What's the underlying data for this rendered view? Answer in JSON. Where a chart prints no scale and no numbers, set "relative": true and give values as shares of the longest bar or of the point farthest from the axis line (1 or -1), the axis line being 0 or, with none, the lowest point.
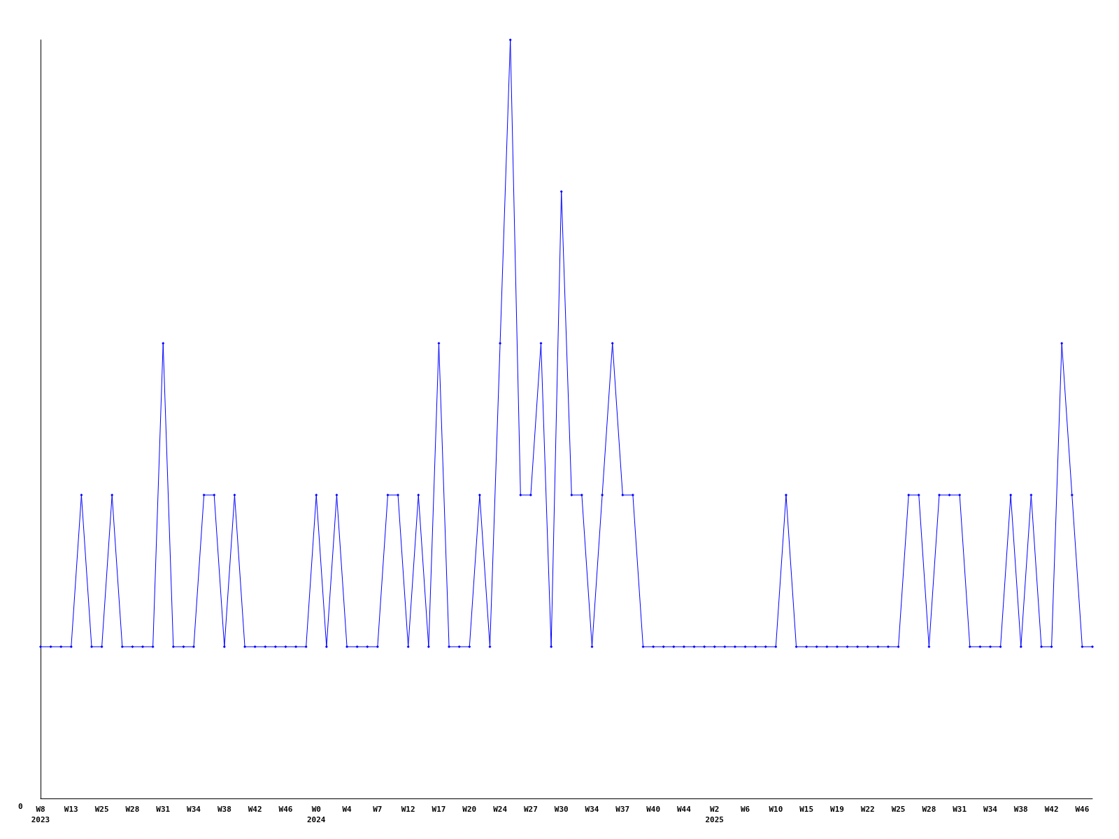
{
  "chart_data": {
    "type": "line",
    "relative": true,
    "color": "#0000ff",
    "marker": "diamond",
    "annotations": [
      "0"
    ],
    "categories": [
      "W8\n2023",
      null,
      null,
      "W13",
      null,
      null,
      "W25",
      null,
      null,
      "W28",
      null,
      null,
      "W31",
      null,
      null,
      "W34",
      null,
      null,
      "W38",
      null,
      null,
      "W42",
      null,
      null,
      "W46",
      null,
      null,
      "W0\n2024",
      null,
      null,
      "W4",
      null,
      null,
      "W7",
      null,
      null,
      "W12",
      null,
      null,
      "W17",
      null,
      null,
      "W20",
      null,
      null,
      "W24",
      null,
      null,
      "W27",
      null,
      null,
      "W30",
      null,
      null,
      "W34",
      null,
      null,
      "W37",
      null,
      null,
      "W40",
      null,
      null,
      "W44",
      null,
      null,
      "W2\n2025",
      null,
      null,
      "W6",
      null,
      null,
      "W10",
      null,
      null,
      "W15",
      null,
      null,
      "W19",
      null,
      null,
      "W22",
      null,
      null,
      "W25",
      null,
      null,
      "W28",
      null,
      null,
      "W31",
      null,
      null,
      "W34",
      null,
      null,
      "W38",
      null,
      null,
      "W42",
      null,
      null,
      "W46",
      null
    ],
    "values": [
      0.2,
      0.2,
      0.2,
      0.2,
      0.4,
      0.2,
      0.2,
      0.4,
      0.2,
      0.2,
      0.2,
      0.2,
      0.6,
      0.2,
      0.2,
      0.2,
      0.4,
      0.4,
      0.2,
      0.4,
      0.2,
      0.2,
      0.2,
      0.2,
      0.2,
      0.2,
      0.2,
      0.4,
      0.2,
      0.4,
      0.2,
      0.2,
      0.2,
      0.2,
      0.4,
      0.4,
      0.2,
      0.4,
      0.2,
      0.6,
      0.2,
      0.2,
      0.2,
      0.4,
      0.2,
      0.6,
      1,
      0.4,
      0.4,
      0.6,
      0.2,
      0.8,
      0.4,
      0.4,
      0.2,
      0.4,
      0.6,
      0.4,
      0.4,
      0.2,
      0.2,
      0.2,
      0.2,
      0.2,
      0.2,
      0.2,
      0.2,
      0.2,
      0.2,
      0.2,
      0.2,
      0.2,
      0.2,
      0.4,
      0.2,
      0.2,
      0.2,
      0.2,
      0.2,
      0.2,
      0.2,
      0.2,
      0.2,
      0.2,
      0.2,
      0.4,
      0.4,
      0.2,
      0.4,
      0.4,
      0.4,
      0.2,
      0.2,
      0.2,
      0.2,
      0.4,
      0.2,
      0.4,
      0.2,
      0.2,
      0.6,
      0.4,
      0.2,
      0.2
    ]
  }
}
